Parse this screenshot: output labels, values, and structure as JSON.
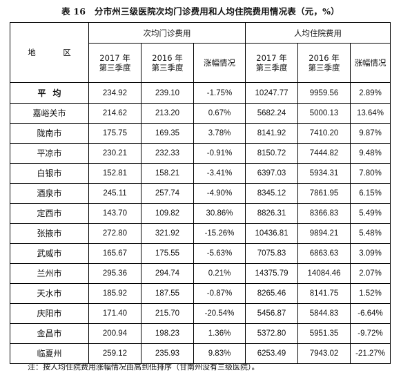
{
  "title": "表 16　分市州三级医院次均门诊费用和人均住院费用情况表（元，%）",
  "header": {
    "region": "地　区",
    "outpatient_group": "次均门诊费用",
    "inpatient_group": "人均住院费用",
    "col_2017_line1": "2017 年",
    "col_2017_line2": "第三季度",
    "col_2016_line1": "2016 年",
    "col_2016_line2": "第三季度",
    "col_change": "涨幅情况"
  },
  "rows": [
    {
      "region": "平均",
      "op2017": "234.92",
      "op2016": "239.10",
      "opchg": "-1.75%",
      "ip2017": "10247.77",
      "ip2016": "9959.56",
      "ipchg": "2.89%"
    },
    {
      "region": "嘉峪关市",
      "op2017": "214.62",
      "op2016": "213.20",
      "opchg": "0.67%",
      "ip2017": "5682.24",
      "ip2016": "5000.13",
      "ipchg": "13.64%"
    },
    {
      "region": "陇南市",
      "op2017": "175.75",
      "op2016": "169.35",
      "opchg": "3.78%",
      "ip2017": "8141.92",
      "ip2016": "7410.20",
      "ipchg": "9.87%"
    },
    {
      "region": "平凉市",
      "op2017": "230.21",
      "op2016": "232.33",
      "opchg": "-0.91%",
      "ip2017": "8150.72",
      "ip2016": "7444.82",
      "ipchg": "9.48%"
    },
    {
      "region": "白银市",
      "op2017": "152.81",
      "op2016": "158.21",
      "opchg": "-3.41%",
      "ip2017": "6397.03",
      "ip2016": "5934.31",
      "ipchg": "7.80%"
    },
    {
      "region": "酒泉市",
      "op2017": "245.11",
      "op2016": "257.74",
      "opchg": "-4.90%",
      "ip2017": "8345.12",
      "ip2016": "7861.95",
      "ipchg": "6.15%"
    },
    {
      "region": "定西市",
      "op2017": "143.70",
      "op2016": "109.82",
      "opchg": "30.86%",
      "ip2017": "8826.31",
      "ip2016": "8366.83",
      "ipchg": "5.49%"
    },
    {
      "region": "张掖市",
      "op2017": "272.80",
      "op2016": "321.92",
      "opchg": "-15.26%",
      "ip2017": "10436.81",
      "ip2016": "9894.21",
      "ipchg": "5.48%"
    },
    {
      "region": "武威市",
      "op2017": "165.67",
      "op2016": "175.55",
      "opchg": "-5.63%",
      "ip2017": "7075.83",
      "ip2016": "6863.63",
      "ipchg": "3.09%"
    },
    {
      "region": "兰州市",
      "op2017": "295.36",
      "op2016": "294.74",
      "opchg": "0.21%",
      "ip2017": "14375.79",
      "ip2016": "14084.46",
      "ipchg": "2.07%"
    },
    {
      "region": "天水市",
      "op2017": "185.92",
      "op2016": "187.55",
      "opchg": "-0.87%",
      "ip2017": "8265.46",
      "ip2016": "8141.75",
      "ipchg": "1.52%"
    },
    {
      "region": "庆阳市",
      "op2017": "171.40",
      "op2016": "215.70",
      "opchg": "-20.54%",
      "ip2017": "5456.87",
      "ip2016": "5844.83",
      "ipchg": "-6.64%"
    },
    {
      "region": "金昌市",
      "op2017": "200.94",
      "op2016": "198.23",
      "opchg": "1.36%",
      "ip2017": "5372.80",
      "ip2016": "5951.35",
      "ipchg": "-9.72%"
    },
    {
      "region": "临夏州",
      "op2017": "259.12",
      "op2016": "235.93",
      "opchg": "9.83%",
      "ip2017": "6253.49",
      "ip2016": "7943.02",
      "ipchg": "-21.27%"
    }
  ],
  "note": "注：按人均住院费用涨幅情况由高到低排序（甘南州没有三级医院）。"
}
